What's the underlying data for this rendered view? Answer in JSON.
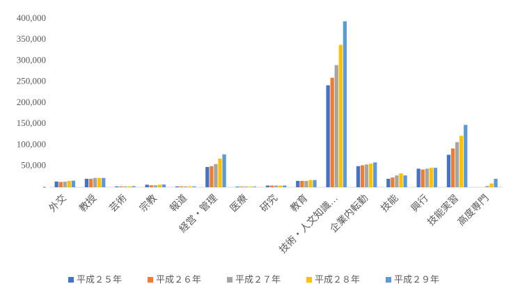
{
  "chart_data": {
    "type": "bar",
    "categories": [
      "外交",
      "教授",
      "芸術",
      "宗教",
      "報道",
      "経営・管理",
      "医療",
      "研究",
      "教育",
      "技術・人文知識…",
      "企業内転勤",
      "技能",
      "興行",
      "技能実習",
      "高度専門"
    ],
    "series": [
      {
        "name": "平成２５年",
        "color": "#4472c4",
        "values": [
          13500,
          20000,
          2000,
          6000,
          2000,
          48000,
          1500,
          4000,
          15000,
          242000,
          50000,
          20000,
          44000,
          77000,
          null
        ]
      },
      {
        "name": "平成２６年",
        "color": "#ed7d31",
        "values": [
          12500,
          20000,
          2000,
          4500,
          2000,
          50000,
          1500,
          4000,
          15000,
          260000,
          52000,
          23000,
          42000,
          92000,
          null
        ]
      },
      {
        "name": "平成２７年",
        "color": "#a5a5a5",
        "values": [
          13000,
          22000,
          2000,
          4500,
          2000,
          55000,
          1500,
          4000,
          15000,
          290000,
          54000,
          28000,
          44000,
          107000,
          3000
        ]
      },
      {
        "name": "平成２８年",
        "color": "#ffc000",
        "values": [
          15000,
          22000,
          2000,
          6000,
          2000,
          68000,
          1500,
          4000,
          17000,
          338000,
          56000,
          33000,
          46000,
          122000,
          9000
        ]
      },
      {
        "name": "平成２９年",
        "color": "#5b9bd5",
        "values": [
          15500,
          22000,
          2500,
          6500,
          2000,
          78000,
          1500,
          4000,
          17000,
          394000,
          59000,
          28000,
          46000,
          148000,
          20000
        ]
      }
    ],
    "ylim": [
      0,
      400000
    ],
    "yticks": [
      {
        "value": 0,
        "label": "-"
      },
      {
        "value": 50000,
        "label": "50,000"
      },
      {
        "value": 100000,
        "label": "100,000"
      },
      {
        "value": 150000,
        "label": "150,000"
      },
      {
        "value": 200000,
        "label": "200,000"
      },
      {
        "value": 250000,
        "label": "250,000"
      },
      {
        "value": 300000,
        "label": "300,000"
      },
      {
        "value": 350000,
        "label": "350,000"
      },
      {
        "value": 400000,
        "label": "400,000"
      }
    ],
    "grid": false,
    "legend": "bottom"
  }
}
